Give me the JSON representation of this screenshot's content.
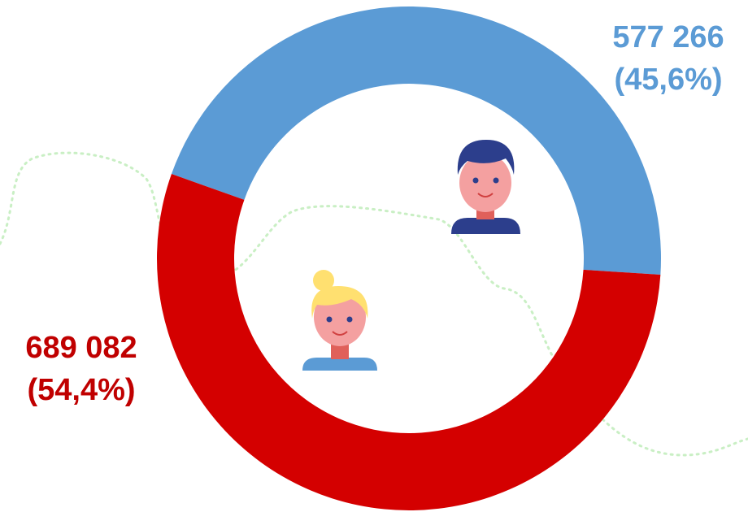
{
  "chart_data": {
    "type": "donut",
    "values": [
      577266,
      689082
    ],
    "value_labels": [
      "577 266",
      "689 082"
    ],
    "percents": [
      45.6,
      54.4
    ],
    "percent_labels": [
      "(45,6%)",
      "(54,4%)"
    ],
    "colors": [
      "#5b9bd5",
      "#d40000"
    ]
  }
}
